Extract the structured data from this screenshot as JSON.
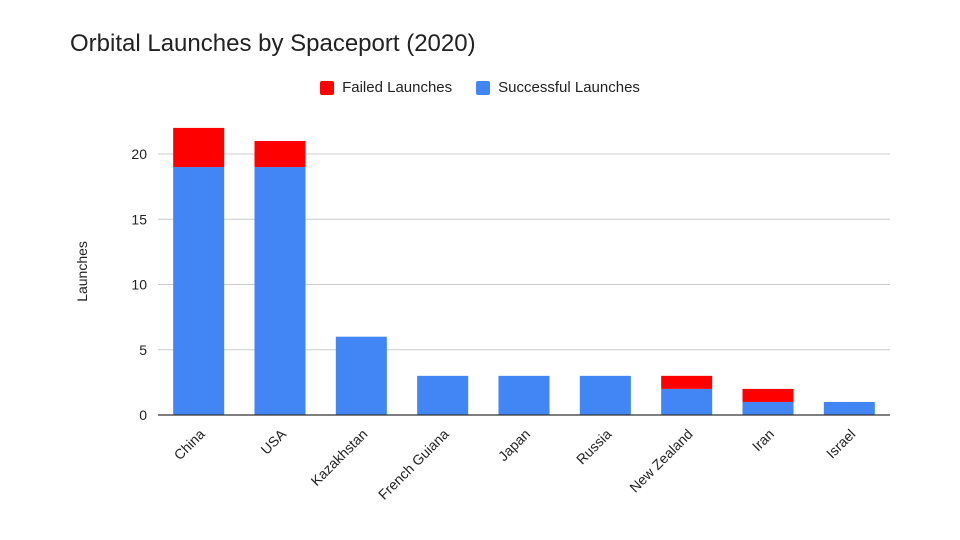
{
  "chart_data": {
    "type": "bar",
    "stacked": true,
    "title": "Orbital Launches by Spaceport (2020)",
    "xlabel": "",
    "ylabel": "Launches",
    "categories": [
      "China",
      "USA",
      "Kazakhstan",
      "French Guiana",
      "Japan",
      "Russia",
      "New Zealand",
      "Iran",
      "Israel"
    ],
    "series": [
      {
        "name": "Successful Launches",
        "color": "#4285f4",
        "values": [
          19,
          19,
          6,
          3,
          3,
          3,
          2,
          1,
          1
        ]
      },
      {
        "name": "Failed Launches",
        "color": "#ff0000",
        "values": [
          3,
          2,
          0,
          0,
          0,
          0,
          1,
          1,
          0
        ]
      }
    ],
    "legend_order": [
      "Failed Launches",
      "Successful Launches"
    ],
    "yticks": [
      0,
      5,
      10,
      15,
      20
    ],
    "ylim": [
      0,
      22
    ],
    "grid": true,
    "legend_position": "top"
  }
}
